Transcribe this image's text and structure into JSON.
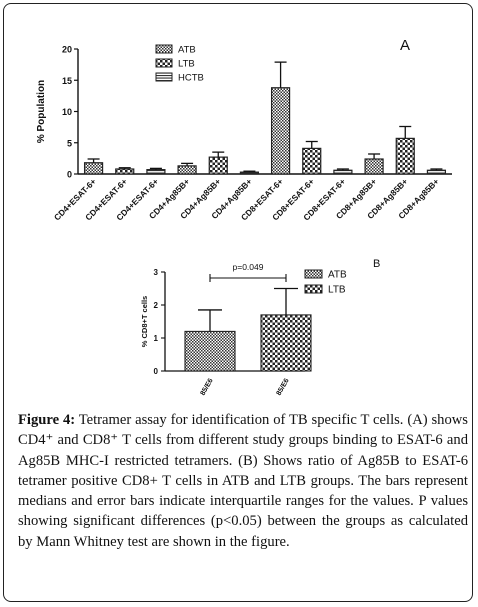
{
  "chart_data": [
    {
      "type": "bar",
      "panel_label": "A",
      "ylabel": "% Population",
      "ylim": [
        0,
        20
      ],
      "yticks": [
        "0",
        "5",
        "10",
        "15",
        "20"
      ],
      "legend": [
        {
          "name": "ATB",
          "pattern": "checker-fine"
        },
        {
          "name": "LTB",
          "pattern": "checker-coarse"
        },
        {
          "name": "HCTB",
          "pattern": "horizontal-lines"
        }
      ],
      "legend_position": "top-center",
      "categories": [
        "CD4+ESAT-6+",
        "CD4+ESAT-6+",
        "CD4+ESAT-6+",
        "CD4+Ag85B+",
        "CD4+Ag85B+",
        "CD4+Ag85B+",
        "CD8+ESAT-6+",
        "CD8+ESAT-6+",
        "CD8+ESAT-6+",
        "CD8+Ag85B+",
        "CD8+Ag85B+",
        "CD8+Ag85B+"
      ],
      "groups": [
        "ATB",
        "LTB",
        "HCTB",
        "ATB",
        "LTB",
        "HCTB",
        "ATB",
        "LTB",
        "HCTB",
        "ATB",
        "LTB",
        "HCTB"
      ],
      "values": [
        1.8,
        0.8,
        0.7,
        1.3,
        2.7,
        0.3,
        13.8,
        4.1,
        0.6,
        2.4,
        5.7,
        0.6
      ],
      "error_upper": [
        2.4,
        1.0,
        0.9,
        1.7,
        3.5,
        0.45,
        17.9,
        5.2,
        0.8,
        3.2,
        7.6,
        0.8
      ]
    },
    {
      "type": "bar",
      "panel_label": "B",
      "ylabel": "% CD8+T cells",
      "ylim": [
        0,
        3
      ],
      "yticks": [
        "0",
        "1",
        "2",
        "3"
      ],
      "categories": [
        "85/E6",
        "85/E6"
      ],
      "groups": [
        "ATB",
        "LTB"
      ],
      "values": [
        1.2,
        1.7
      ],
      "error_upper": [
        1.85,
        2.5
      ],
      "legend": [
        {
          "name": "ATB",
          "pattern": "checker-fine"
        },
        {
          "name": "LTB",
          "pattern": "checker-coarse"
        }
      ],
      "legend_position": "top-right",
      "annotation": "p=0.049"
    }
  ],
  "caption": {
    "label": "Figure 4:",
    "text": " Tetramer assay for identification of TB specific T cells. (A) shows CD4⁺ and CD8⁺ T cells from different study groups binding to ESAT-6 and Ag85B MHC-I restricted tetramers. (B) Shows ratio of Ag85B to ESAT-6 tetramer positive CD8+ T cells in ATB and LTB groups. The bars represent medians and error bars indicate interquartile ranges for the values. P values showing significant differences (p<0.05) between the groups as calculated by Mann Whitney test are shown in the figure."
  },
  "colors": {
    "bar_stroke": "#222222",
    "axis": "#111111",
    "frame": "#222222"
  }
}
